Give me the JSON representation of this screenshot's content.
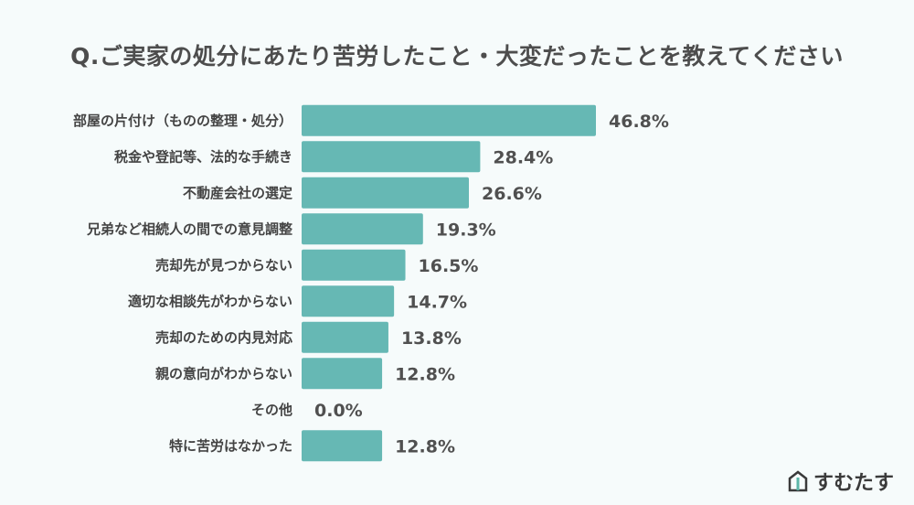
{
  "title": "Q.ご実家の処分にあたり苦労したこと・大変だったことを教えてください",
  "brand": "すむたす",
  "chart_data": {
    "type": "bar",
    "orientation": "horizontal",
    "bar_color": "#66b8b4",
    "categories": [
      "部屋の片付け（ものの整理・処分）",
      "税金や登記等、法的な手続き",
      "不動産会社の選定",
      "兄弟など相続人の間での意見調整",
      "売却先が見つからない",
      "適切な相談先がわからない",
      "売却のための内見対応",
      "親の意向がわからない",
      "その他",
      "特に苦労はなかった"
    ],
    "values": [
      46.8,
      28.4,
      26.6,
      19.3,
      16.5,
      14.7,
      13.8,
      12.8,
      0.0,
      12.8
    ],
    "value_labels": [
      "46.8%",
      "28.4%",
      "26.6%",
      "19.3%",
      "16.5%",
      "14.7%",
      "13.8%",
      "12.8%",
      "0.0%",
      "12.8%"
    ],
    "xlim": [
      0,
      50
    ],
    "grid": false
  }
}
